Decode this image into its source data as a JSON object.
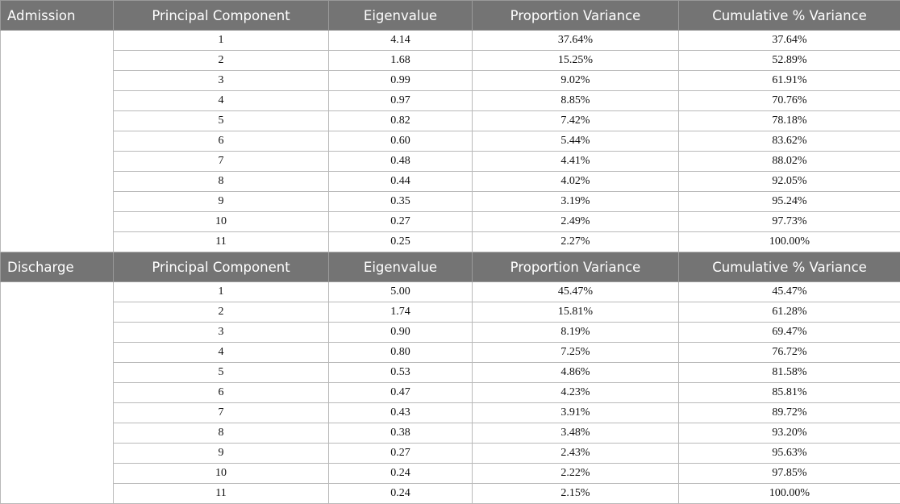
{
  "columns": [
    "Principal Component",
    "Eigenvalue",
    "Proportion Variance",
    "Cumulative % Variance"
  ],
  "groups": [
    {
      "name": "Admission",
      "rows": [
        [
          "1",
          "4.14",
          "37.64%",
          "37.64%"
        ],
        [
          "2",
          "1.68",
          "15.25%",
          "52.89%"
        ],
        [
          "3",
          "0.99",
          "9.02%",
          "61.91%"
        ],
        [
          "4",
          "0.97",
          "8.85%",
          "70.76%"
        ],
        [
          "5",
          "0.82",
          "7.42%",
          "78.18%"
        ],
        [
          "6",
          "0.60",
          "5.44%",
          "83.62%"
        ],
        [
          "7",
          "0.48",
          "4.41%",
          "88.02%"
        ],
        [
          "8",
          "0.44",
          "4.02%",
          "92.05%"
        ],
        [
          "9",
          "0.35",
          "3.19%",
          "95.24%"
        ],
        [
          "10",
          "0.27",
          "2.49%",
          "97.73%"
        ],
        [
          "11",
          "0.25",
          "2.27%",
          "100.00%"
        ]
      ]
    },
    {
      "name": "Discharge",
      "rows": [
        [
          "1",
          "5.00",
          "45.47%",
          "45.47%"
        ],
        [
          "2",
          "1.74",
          "15.81%",
          "61.28%"
        ],
        [
          "3",
          "0.90",
          "8.19%",
          "69.47%"
        ],
        [
          "4",
          "0.80",
          "7.25%",
          "76.72%"
        ],
        [
          "5",
          "0.53",
          "4.86%",
          "81.58%"
        ],
        [
          "6",
          "0.47",
          "4.23%",
          "85.81%"
        ],
        [
          "7",
          "0.43",
          "3.91%",
          "89.72%"
        ],
        [
          "8",
          "0.38",
          "3.48%",
          "93.20%"
        ],
        [
          "9",
          "0.27",
          "2.43%",
          "95.63%"
        ],
        [
          "10",
          "0.24",
          "2.22%",
          "97.85%"
        ],
        [
          "11",
          "0.24",
          "2.15%",
          "100.00%"
        ]
      ]
    }
  ],
  "colors": {
    "header_bg": "#747474",
    "header_text": "#ffffff",
    "grid": "#b9b9b9"
  }
}
